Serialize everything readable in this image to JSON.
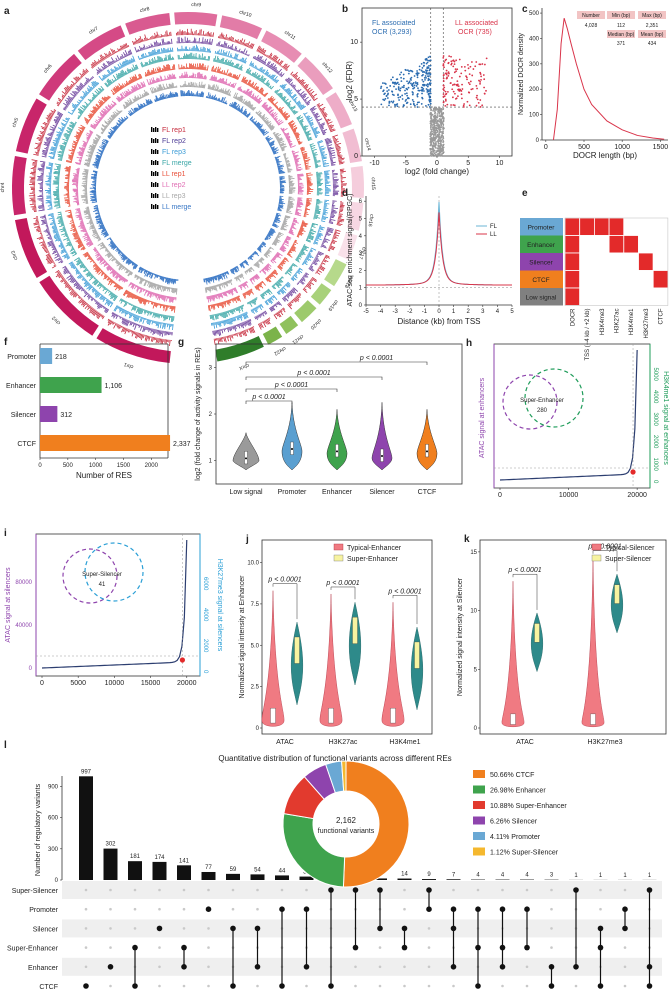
{
  "panels": {
    "a": {
      "letter": "a",
      "chromosomes": [
        "chr1",
        "chr2",
        "chr3",
        "chr4",
        "chr5",
        "chr6",
        "chr7",
        "chr8",
        "chr9",
        "chr10",
        "chr11",
        "chr12",
        "chr13",
        "chr14",
        "chr15",
        "chr16",
        "chr17",
        "chr18",
        "chr19",
        "chr20",
        "chr21",
        "chr22",
        "chrX"
      ],
      "track_labels": [
        {
          "text": "FL rep1",
          "color": "#c62a3c"
        },
        {
          "text": "FL rep2",
          "color": "#4b3a95"
        },
        {
          "text": "FL rep3",
          "color": "#3a9bd6"
        },
        {
          "text": "FL merge",
          "color": "#3aa6a6"
        },
        {
          "text": "LL rep1",
          "color": "#e8503a"
        },
        {
          "text": "LL rep2",
          "color": "#e06fb4"
        },
        {
          "text": "LL rep3",
          "color": "#a9a9a9"
        },
        {
          "text": "LL merge",
          "color": "#3a78c6"
        }
      ]
    },
    "b": {
      "letter": "b",
      "xlabel": "log2 (fold change)",
      "ylabel": "-log2 (FDR)",
      "xticks": [
        "-10",
        "-5",
        "0",
        "5",
        "10"
      ],
      "yticks": [
        "0",
        "5",
        "10"
      ],
      "fl_label": "FL associated",
      "fl_count": "OCR (3,293)",
      "ll_label": "LL associated",
      "ll_count": "OCR (735)"
    },
    "c": {
      "letter": "c",
      "xlabel": "DOCR length (bp)",
      "ylabel": "Normalized DOCR density",
      "xticks": [
        "0",
        "500",
        "1000",
        "1500"
      ],
      "yticks": [
        "0",
        "100",
        "200",
        "300",
        "400",
        "500"
      ],
      "table": {
        "headers": [
          "Number",
          "Min (bp)",
          "Max (bp)"
        ],
        "row1": [
          "4,028",
          "112",
          "2,351"
        ],
        "headers2": [
          "Median (bp)",
          "Mean (bp)"
        ],
        "row2": [
          "371",
          "434"
        ]
      }
    },
    "d": {
      "letter": "d",
      "xlabel": "Distance (kb) from TSS",
      "ylabel": "ATAC-seq enrichment signal(RPGC)",
      "xticks": [
        "-5",
        "-4",
        "-3",
        "-2",
        "-1",
        "0",
        "1",
        "2",
        "3",
        "4",
        "5"
      ],
      "yticks": [
        "0",
        "1",
        "2",
        "3",
        "4",
        "5",
        "6"
      ],
      "legend": [
        {
          "name": "FL",
          "color": "#6bb6d6"
        },
        {
          "name": "LL",
          "color": "#d9344a"
        }
      ]
    },
    "e": {
      "letter": "e",
      "rows": [
        {
          "label": "Promoter",
          "color": "#6aa8d4"
        },
        {
          "label": "Enhancer",
          "color": "#3fa34d"
        },
        {
          "label": "Silencer",
          "color": "#8e44ad"
        },
        {
          "label": "CTCF",
          "color": "#f07f1e"
        },
        {
          "label": "Low signal",
          "color": "#808080"
        }
      ],
      "cols": [
        "DOCR",
        "TSS (−4 kb / +2 kb)",
        "H3K4me3",
        "H3K27ac",
        "H3K4me1",
        "H3K27me3",
        "CTCF"
      ]
    },
    "f": {
      "letter": "f",
      "xlabel": "Number of RES",
      "xticks": [
        "0",
        "500",
        "1000",
        "1500",
        "2000"
      ]
    },
    "g": {
      "letter": "g",
      "ylabel": "log2 (fold change of activity signals in REs)",
      "yticks": [
        "1",
        "2",
        "3"
      ],
      "pvals": [
        "p < 0.0001",
        "p < 0.0001",
        "p < 0.0001",
        "p < 0.0001"
      ]
    },
    "h": {
      "letter": "h",
      "ylabel_left": "ATAC signal at enhancers",
      "ylabel_right": "H3K4me1 signal at enhancers",
      "xticks": [
        "0",
        "10000",
        "20000"
      ],
      "yticks_right": [
        "0",
        "1000",
        "2000",
        "3000",
        "4000",
        "5000"
      ],
      "venn_label": "Super-Enhancer",
      "venn_count": "280"
    },
    "i": {
      "letter": "i",
      "ylabel_left": "ATAC signal at silencers",
      "ylabel_right": "H3K27me3 signal at silencers",
      "xticks": [
        "0",
        "5000",
        "10000",
        "15000",
        "20000"
      ],
      "yticks_left": [
        "0",
        "40000",
        "80000"
      ],
      "yticks_right": [
        "0",
        "2000",
        "4000",
        "6000"
      ],
      "venn_label": "Super-Silencer",
      "venn_count": "41"
    },
    "j": {
      "letter": "j",
      "ylabel": "Normalized signal intensity at Enhancer",
      "yticks": [
        "0",
        "2.5",
        "5.0",
        "7.5",
        "10.0"
      ],
      "groups": [
        "ATAC",
        "H3K27ac",
        "H3K4me1"
      ],
      "legend": [
        "Typical-Enhancer",
        "Super-Enhancer"
      ],
      "pvals": [
        "p < 0.0001",
        "p < 0.0001",
        "p < 0.0001"
      ]
    },
    "k": {
      "letter": "k",
      "ylabel": "Normalized signal intensity at Silencer",
      "yticks": [
        "0",
        "5",
        "10",
        "15"
      ],
      "groups": [
        "ATAC",
        "H3K27me3"
      ],
      "legend": [
        "Typical-Silencer",
        "Super-Silencer"
      ],
      "pvals": [
        "p < 0.0001",
        "p < 0.0001"
      ]
    },
    "l": {
      "letter": "l",
      "title": "Quantitative distribution of functional variants across different REs",
      "ylabel": "Number of regulatory variants",
      "yticks": [
        "0",
        "300",
        "600",
        "900"
      ],
      "donut_center_count": "2,162",
      "donut_center_label": "functional variants",
      "sets": [
        "Super-Silencer",
        "Promoter",
        "Silencer",
        "Super-Enhancer",
        "Enhancer",
        "CTCF"
      ]
    }
  },
  "chart_data": [
    {
      "panel": "f",
      "type": "bar",
      "orientation": "horizontal",
      "categories": [
        "Promoter",
        "Enhancer",
        "Silencer",
        "CTCF"
      ],
      "values": [
        218,
        1106,
        312,
        2337
      ],
      "value_labels": [
        "218",
        "1,106",
        "312",
        "2,337"
      ],
      "colors": [
        "#6aa8d4",
        "#3fa34d",
        "#8e44ad",
        "#f07f1e"
      ],
      "xlabel": "Number of RES",
      "xlim": [
        0,
        2300
      ]
    },
    {
      "panel": "g",
      "type": "violin",
      "categories": [
        "Low signal",
        "Promoter",
        "Enhancer",
        "Silencer",
        "CTCF"
      ],
      "medians": [
        1.05,
        1.25,
        1.2,
        1.1,
        1.2
      ],
      "colors": [
        "#9a9a9a",
        "#5a9fd0",
        "#3fa34d",
        "#8e44ad",
        "#f07f1e"
      ],
      "ylabel": "log2 (fold change of activity signals in REs)",
      "ylim": [
        0.5,
        3.5
      ]
    },
    {
      "panel": "l",
      "type": "bar",
      "categories": [
        "1",
        "2",
        "3",
        "4",
        "5",
        "6",
        "7",
        "8",
        "9",
        "10",
        "11",
        "12",
        "13",
        "14",
        "15",
        "16",
        "17",
        "18",
        "19",
        "20",
        "21",
        "22",
        "23",
        "24"
      ],
      "values": [
        997,
        302,
        181,
        174,
        141,
        77,
        59,
        54,
        44,
        33,
        19,
        18,
        15,
        14,
        9,
        7,
        4,
        4,
        4,
        3,
        1,
        1,
        1,
        1
      ],
      "value_labels": [
        "997",
        "302",
        "181",
        "174",
        "141",
        "77",
        "59",
        "54",
        "44",
        "33",
        "19",
        "18",
        "15",
        "14",
        "9",
        "7",
        "4",
        "4",
        "4",
        "3",
        "1",
        "1",
        "1",
        "1"
      ],
      "ylabel": "Number of regulatory variants",
      "ylim": [
        0,
        1000
      ]
    },
    {
      "panel": "l-donut",
      "type": "pie",
      "categories": [
        "CTCF",
        "Enhancer",
        "Super-Enhancer",
        "Silencer",
        "Promoter",
        "Super-Silencer"
      ],
      "values": [
        50.66,
        26.98,
        10.88,
        6.26,
        4.11,
        1.12
      ],
      "labels": [
        "50.66% CTCF",
        "26.98% Enhancer",
        "10.88% Super-Enhancer",
        "6.26% Silencer",
        "4.11% Promoter",
        "1.12% Super-Silencer"
      ],
      "colors": [
        "#f07f1e",
        "#3fa34d",
        "#e23a2e",
        "#8e44ad",
        "#6aa8d4",
        "#f5b82e"
      ]
    }
  ]
}
